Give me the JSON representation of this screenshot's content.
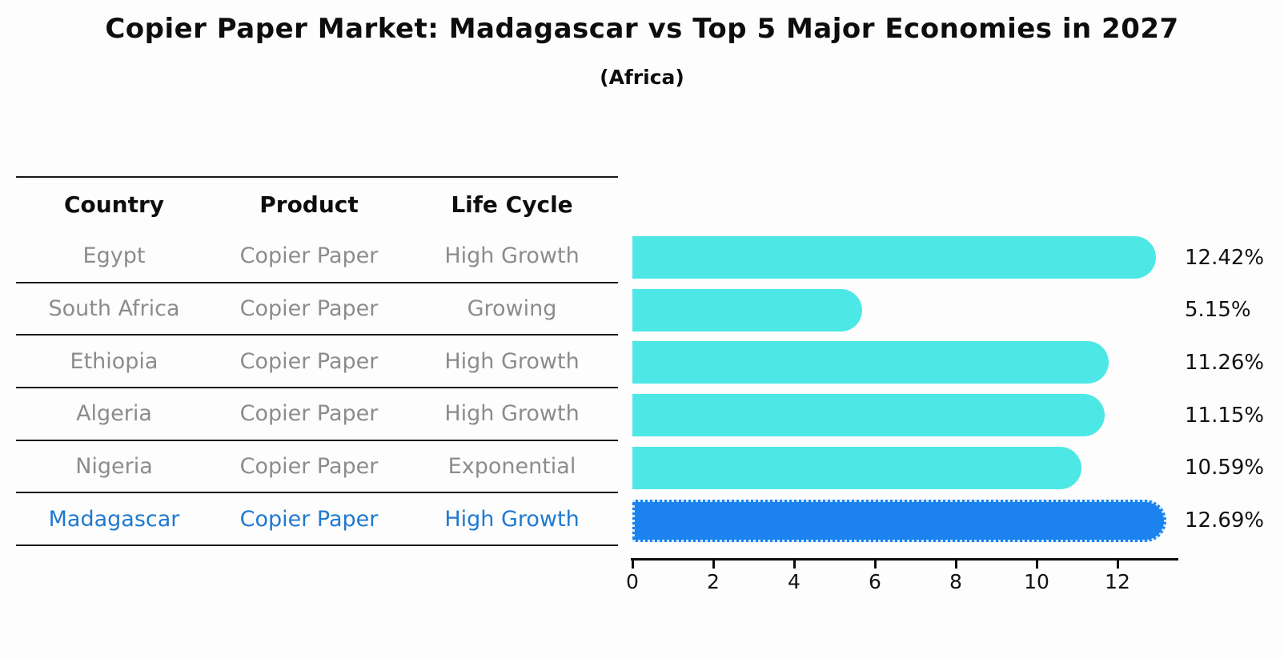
{
  "title": "Copier Paper Market: Madagascar vs Top 5 Major Economies in 2027",
  "subtitle": "(Africa)",
  "table": {
    "headers": [
      "Country",
      "Product",
      "Life Cycle"
    ],
    "rows": [
      {
        "country": "Egypt",
        "product": "Copier Paper",
        "life_cycle": "High Growth",
        "highlight": false
      },
      {
        "country": "South Africa",
        "product": "Copier Paper",
        "life_cycle": "Growing",
        "highlight": false
      },
      {
        "country": "Ethiopia",
        "product": "Copier Paper",
        "life_cycle": "High Growth",
        "highlight": false
      },
      {
        "country": "Algeria",
        "product": "Copier Paper",
        "life_cycle": "High Growth",
        "highlight": false
      },
      {
        "country": "Nigeria",
        "product": "Copier Paper",
        "life_cycle": "Exponential",
        "highlight": false
      },
      {
        "country": "Madagascar",
        "product": "Copier Paper",
        "life_cycle": "High Growth",
        "highlight": true
      }
    ]
  },
  "chart_data": {
    "type": "bar",
    "orientation": "horizontal",
    "title": "Copier Paper Market: Madagascar vs Top 5 Major Economies in 2027",
    "subtitle": "(Africa)",
    "categories": [
      "Egypt",
      "South Africa",
      "Ethiopia",
      "Algeria",
      "Nigeria",
      "Madagascar"
    ],
    "values": [
      12.42,
      5.15,
      11.26,
      11.15,
      10.59,
      12.69
    ],
    "value_labels": [
      "12.42%",
      "5.15%",
      "11.26%",
      "11.15%",
      "10.59%",
      "12.69%"
    ],
    "unit": "percent",
    "highlight_index": 5,
    "x_ticks": [
      0,
      2,
      4,
      6,
      8,
      10,
      12
    ],
    "xlim": [
      0,
      13.5
    ],
    "xlabel": "",
    "ylabel": "",
    "grid": false,
    "legend": null
  },
  "colors": {
    "bar_default": "#4DE8E6",
    "bar_highlight": "#1B82EE",
    "highlight_text": "#2079D0",
    "body_text": "#8C8C8C",
    "heading_text": "#0D0D0D",
    "rule_line": "#1A1A1A"
  }
}
